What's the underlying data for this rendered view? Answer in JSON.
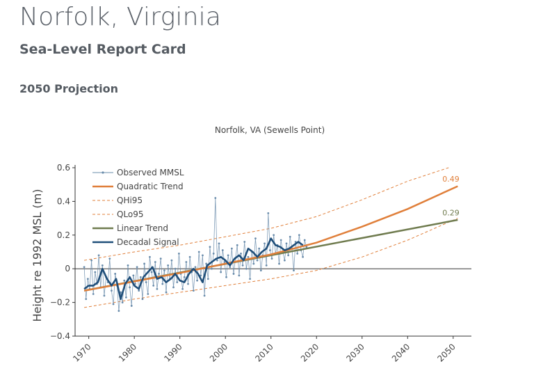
{
  "page": {
    "title": "Norfolk, Virginia",
    "subtitle": "Sea-Level Report Card",
    "section": "2050 Projection"
  },
  "colors": {
    "observed": "#6a8cab",
    "decadal": "#1f4e79",
    "quadratic": "#e07f3a",
    "linear": "#6f7b4e",
    "axis": "#333333",
    "text": "#444444"
  },
  "chart_data": {
    "type": "line",
    "title": "Norfolk, VA (Sewells Point)",
    "xlabel": "",
    "ylabel": "Height re 1992 MSL (m)",
    "xlim": [
      1967,
      2054
    ],
    "ylim": [
      -0.4,
      0.6
    ],
    "x_ticks": [
      1970,
      1980,
      1990,
      2000,
      2010,
      2020,
      2030,
      2040,
      2050
    ],
    "y_ticks": [
      -0.4,
      -0.2,
      0,
      0.2,
      0.4,
      0.6
    ],
    "y_tick_labels": [
      "−0.4",
      "−0.2",
      "0",
      "0.2",
      "0.4",
      "0.6"
    ],
    "legend_position": "top-left",
    "series": [
      {
        "name": "Observed MMSL",
        "style": "line-markers",
        "x": [
          1969.0,
          1969.4,
          1969.8,
          1970.2,
          1970.6,
          1971.0,
          1971.4,
          1971.8,
          1972.2,
          1972.6,
          1973.0,
          1973.4,
          1973.8,
          1974.2,
          1974.6,
          1975.0,
          1975.4,
          1975.8,
          1976.2,
          1976.6,
          1977.0,
          1977.4,
          1977.8,
          1978.2,
          1978.6,
          1979.0,
          1979.4,
          1979.8,
          1980.2,
          1980.6,
          1981.0,
          1981.4,
          1981.8,
          1982.2,
          1982.6,
          1983.0,
          1983.4,
          1983.8,
          1984.2,
          1984.6,
          1985.0,
          1985.4,
          1985.8,
          1986.2,
          1986.6,
          1987.0,
          1987.4,
          1987.8,
          1988.2,
          1988.6,
          1989.0,
          1989.4,
          1989.8,
          1990.2,
          1990.6,
          1991.0,
          1991.4,
          1991.8,
          1992.2,
          1992.6,
          1993.0,
          1993.4,
          1993.8,
          1994.2,
          1994.6,
          1995.0,
          1995.4,
          1995.8,
          1996.2,
          1996.6,
          1997.0,
          1997.4,
          1997.8,
          1998.2,
          1998.6,
          1999.0,
          1999.4,
          1999.8,
          2000.2,
          2000.6,
          2001.0,
          2001.4,
          2001.8,
          2002.2,
          2002.6,
          2003.0,
          2003.4,
          2003.8,
          2004.2,
          2004.6,
          2005.0,
          2005.4,
          2005.8,
          2006.2,
          2006.6,
          2007.0,
          2007.4,
          2007.8,
          2008.2,
          2008.6,
          2009.0,
          2009.4,
          2009.8,
          2010.2,
          2010.6,
          2011.0,
          2011.4,
          2011.8,
          2012.2,
          2012.6,
          2013.0,
          2013.4,
          2013.8,
          2014.2,
          2014.6,
          2015.0,
          2015.4,
          2015.8,
          2016.2,
          2016.6,
          2017.0,
          2017.4,
          2017.8
        ],
        "values": [
          0.01,
          -0.18,
          -0.06,
          -0.12,
          0.05,
          -0.15,
          -0.02,
          -0.09,
          0.08,
          -0.11,
          0.02,
          -0.16,
          -0.05,
          -0.08,
          0.06,
          -0.13,
          -0.21,
          -0.03,
          -0.1,
          -0.25,
          -0.14,
          -0.2,
          -0.07,
          -0.17,
          0.02,
          -0.11,
          -0.22,
          -0.04,
          -0.09,
          0.01,
          -0.13,
          -0.05,
          -0.18,
          0.03,
          -0.08,
          -0.15,
          0.07,
          -0.02,
          -0.1,
          0.04,
          -0.12,
          -0.03,
          0.06,
          -0.09,
          -0.01,
          -0.14,
          0.02,
          -0.06,
          0.05,
          -0.11,
          0.0,
          -0.08,
          0.09,
          -0.03,
          -0.12,
          -0.05,
          0.04,
          -0.09,
          0.07,
          -0.02,
          -0.13,
          0.01,
          -0.07,
          0.1,
          -0.04,
          0.08,
          -0.16,
          0.03,
          -0.06,
          0.13,
          0.0,
          0.09,
          0.42,
          0.05,
          0.15,
          -0.02,
          0.11,
          0.04,
          -0.05,
          0.08,
          0.01,
          0.12,
          -0.03,
          0.06,
          0.14,
          -0.04,
          0.09,
          0.02,
          0.16,
          0.0,
          0.07,
          -0.06,
          0.1,
          0.03,
          0.18,
          0.05,
          0.12,
          -0.01,
          0.08,
          0.15,
          0.02,
          0.33,
          0.11,
          0.06,
          0.2,
          0.09,
          0.14,
          0.03,
          0.17,
          0.1,
          0.05,
          0.15,
          0.08,
          0.19,
          0.12,
          -0.01,
          0.16,
          0.09,
          0.2,
          0.11,
          0.07,
          0.17,
          0.13
        ]
      },
      {
        "name": "Quadratic Trend",
        "x": [
          1969,
          1980,
          1990,
          2000,
          2010,
          2020,
          2030,
          2040,
          2051
        ],
        "values": [
          -0.13,
          -0.075,
          -0.025,
          0.03,
          0.085,
          0.155,
          0.25,
          0.355,
          0.49
        ]
      },
      {
        "name": "QHi95",
        "style": "dashed",
        "x": [
          1969,
          1980,
          1990,
          2000,
          2010,
          2020,
          2030,
          2040,
          2049
        ],
        "values": [
          0.05,
          0.1,
          0.14,
          0.19,
          0.24,
          0.31,
          0.41,
          0.52,
          0.6
        ]
      },
      {
        "name": "QLo95",
        "style": "dashed",
        "x": [
          1969,
          1980,
          1990,
          2000,
          2010,
          2020,
          2030,
          2040,
          2051
        ],
        "values": [
          -0.23,
          -0.18,
          -0.14,
          -0.1,
          -0.06,
          -0.01,
          0.07,
          0.17,
          0.3
        ]
      },
      {
        "name": "Linear Trend",
        "x": [
          1969,
          2051
        ],
        "values": [
          -0.13,
          0.29
        ]
      },
      {
        "name": "Decadal Signal",
        "x": [
          1969,
          1970,
          1971,
          1972,
          1973,
          1974,
          1975,
          1976,
          1977,
          1978,
          1979,
          1980,
          1981,
          1982,
          1983,
          1984,
          1985,
          1986,
          1987,
          1988,
          1989,
          1990,
          1991,
          1992,
          1993,
          1994,
          1995,
          1996,
          1997,
          1998,
          1999,
          2000,
          2001,
          2002,
          2003,
          2004,
          2005,
          2006,
          2007,
          2008,
          2009,
          2010,
          2011,
          2012,
          2013,
          2014,
          2015,
          2016,
          2017
        ],
        "values": [
          -0.12,
          -0.1,
          -0.1,
          -0.08,
          0.0,
          -0.06,
          -0.1,
          -0.06,
          -0.18,
          -0.09,
          -0.05,
          -0.1,
          -0.12,
          -0.05,
          -0.02,
          0.01,
          -0.06,
          -0.05,
          -0.08,
          -0.06,
          -0.03,
          -0.07,
          -0.08,
          -0.03,
          0.0,
          -0.03,
          -0.08,
          0.02,
          0.04,
          0.06,
          0.07,
          0.05,
          0.02,
          0.06,
          0.08,
          0.05,
          0.12,
          0.1,
          0.07,
          0.1,
          0.12,
          0.18,
          0.14,
          0.13,
          0.11,
          0.12,
          0.14,
          0.16,
          0.14
        ]
      }
    ],
    "annotations": [
      {
        "text": "0.49",
        "x": 2049.5,
        "y": 0.5,
        "series": "Quadratic Trend"
      },
      {
        "text": "0.29",
        "x": 2049.5,
        "y": 0.3,
        "series": "Linear Trend"
      }
    ]
  }
}
